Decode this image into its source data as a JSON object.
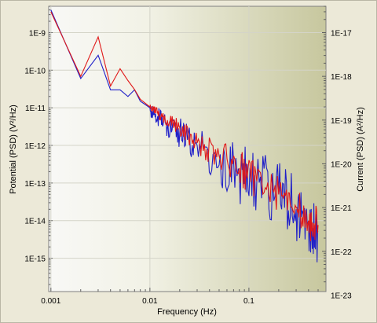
{
  "chart_data": {
    "type": "line",
    "xlabel": "Frequency (Hz)",
    "ylabel_left": "Potential (PSD) (V²/Hz)",
    "ylabel_right": "Current (PSD) (A²/Hz)",
    "x_scale": "log",
    "y_scale": "log",
    "xlim": [
      0.00095,
      0.6
    ],
    "ylim_left": [
      1.3e-16,
      5e-09
    ],
    "ylim_right": [
      1.2e-23,
      4e-17
    ],
    "x_ticks": [
      "0.001",
      "0.01",
      "0.1"
    ],
    "y_ticks_left": [
      "1E-9",
      "1E-10",
      "1E-11",
      "1E-12",
      "1E-13",
      "1E-14",
      "1E-15"
    ],
    "y_ticks_right": [
      "1E-17",
      "1E-18",
      "1E-19",
      "1E-20",
      "1E-21",
      "1E-22",
      "1E-23"
    ],
    "grid": true,
    "legend": "none",
    "series": [
      {
        "axis": "left",
        "color": "#1f1fc8",
        "x": [
          0.001,
          0.002,
          0.003,
          0.004,
          0.005,
          0.006,
          0.007,
          0.008,
          0.01,
          0.012,
          0.015,
          0.02,
          0.03,
          0.05,
          0.08,
          0.12,
          0.2,
          0.3,
          0.4,
          0.5
        ],
        "y": [
          4e-09,
          6e-11,
          2.5e-10,
          3e-11,
          3e-11,
          2e-11,
          3e-11,
          1.5e-11,
          1e-11,
          6e-12,
          3e-12,
          2e-12,
          1e-12,
          3e-13,
          2e-13,
          1e-13,
          5e-14,
          2e-14,
          1e-14,
          5e-15
        ]
      },
      {
        "axis": "right",
        "color": "#e01818",
        "x": [
          0.001,
          0.002,
          0.003,
          0.004,
          0.005,
          0.006,
          0.007,
          0.008,
          0.01,
          0.012,
          0.015,
          0.02,
          0.03,
          0.05,
          0.08,
          0.12,
          0.2,
          0.3,
          0.4,
          0.5
        ],
        "y": [
          3e-17,
          1e-18,
          8e-18,
          6e-19,
          1.5e-18,
          8e-19,
          5e-19,
          3e-19,
          2e-19,
          1.5e-19,
          1e-19,
          7e-20,
          3e-20,
          1.5e-20,
          8e-21,
          4e-21,
          2e-21,
          1e-21,
          5e-22,
          4e-22
        ]
      }
    ]
  }
}
